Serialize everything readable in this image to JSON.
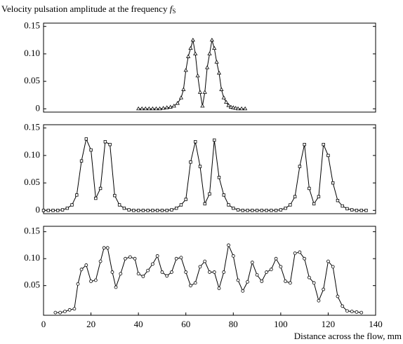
{
  "chart_data": [
    {
      "type": "line",
      "title": "Velocity pulsation amplitude at the frequency",
      "title_symbol": "f",
      "title_subscript": "S",
      "marker": "triangle",
      "color": "#000000",
      "x": [
        40,
        41.5,
        43,
        44.5,
        46,
        47.5,
        49,
        50.5,
        52,
        53.5,
        55,
        56.5,
        58,
        59,
        60,
        61,
        62,
        63,
        64,
        65,
        66,
        67,
        68,
        69,
        70,
        71,
        72,
        73,
        74,
        75,
        76,
        77,
        78,
        79,
        80,
        81,
        82,
        83.5,
        85
      ],
      "values": [
        0,
        0,
        0,
        0,
        0,
        0,
        0,
        0.001,
        0.002,
        0.003,
        0.005,
        0.01,
        0.02,
        0.035,
        0.07,
        0.095,
        0.11,
        0.125,
        0.1,
        0.06,
        0.03,
        0.005,
        0.03,
        0.075,
        0.1,
        0.125,
        0.11,
        0.085,
        0.065,
        0.035,
        0.02,
        0.012,
        0.006,
        0.003,
        0.002,
        0.001,
        0,
        0,
        0
      ],
      "xlim": [
        0,
        140
      ],
      "ylim": [
        -0.006,
        0.156
      ],
      "yticks": [
        0,
        0.05,
        {
          "value": 0.1,
          "label": "0.10"
        },
        0.15
      ]
    },
    {
      "type": "line",
      "marker": "square",
      "color": "#000000",
      "x": [
        0,
        2,
        4,
        6,
        8,
        10,
        12,
        14,
        16,
        18,
        20,
        22,
        24,
        26,
        28,
        30,
        32,
        34,
        36,
        38,
        40,
        42,
        44,
        46,
        48,
        50,
        52,
        54,
        56,
        58,
        60,
        62,
        64,
        66,
        68,
        70,
        72,
        74,
        76,
        78,
        80,
        82,
        84,
        86,
        88,
        90,
        92,
        94,
        96,
        98,
        100,
        102,
        104,
        106,
        108,
        110,
        112,
        114,
        116,
        118,
        120,
        122,
        124,
        126,
        128,
        130,
        132,
        134,
        136
      ],
      "values": [
        0,
        0,
        0,
        0,
        0.001,
        0.004,
        0.01,
        0.028,
        0.09,
        0.13,
        0.11,
        0.022,
        0.04,
        0.125,
        0.12,
        0.027,
        0.01,
        0.004,
        0.001,
        0,
        0,
        0,
        0,
        0,
        0,
        0,
        0,
        0.001,
        0.004,
        0.01,
        0.02,
        0.088,
        0.125,
        0.08,
        0.012,
        0.03,
        0.128,
        0.06,
        0.028,
        0.01,
        0.004,
        0.001,
        0,
        0,
        0,
        0,
        0,
        0,
        0,
        0,
        0.001,
        0.004,
        0.01,
        0.025,
        0.08,
        0.12,
        0.04,
        0.012,
        0.025,
        0.12,
        0.1,
        0.05,
        0.018,
        0.008,
        0.003,
        0.001,
        0,
        0,
        0
      ],
      "xlim": [
        0,
        140
      ],
      "ylim": [
        -0.006,
        0.156
      ],
      "yticks": [
        0,
        0.05,
        {
          "value": 0.1,
          "label": "0.10"
        },
        0.15
      ]
    },
    {
      "type": "line",
      "marker": "circle",
      "color": "#000000",
      "xlabel": "Distance across the flow, mm",
      "x": [
        5,
        7,
        9,
        11,
        13,
        14.5,
        16,
        18,
        20,
        22,
        24,
        25.5,
        27,
        29,
        30.5,
        32.5,
        34.5,
        36.5,
        38.5,
        40,
        42,
        44,
        46,
        48,
        50,
        52,
        54,
        56,
        58,
        60,
        62,
        64,
        66,
        68,
        70,
        72,
        74,
        76,
        78,
        80,
        82,
        84,
        86,
        88,
        90,
        92,
        94,
        96,
        98,
        100,
        102,
        104,
        106,
        108,
        110,
        112,
        114,
        116,
        118,
        120,
        122,
        124,
        126,
        128,
        130,
        132,
        134
      ],
      "values": [
        0,
        0,
        0.002,
        0.005,
        0.007,
        0.053,
        0.08,
        0.088,
        0.058,
        0.06,
        0.095,
        0.12,
        0.12,
        0.075,
        0.047,
        0.072,
        0.1,
        0.103,
        0.1,
        0.072,
        0.067,
        0.078,
        0.09,
        0.105,
        0.075,
        0.068,
        0.075,
        0.1,
        0.102,
        0.075,
        0.05,
        0.055,
        0.085,
        0.095,
        0.075,
        0.075,
        0.045,
        0.075,
        0.125,
        0.105,
        0.06,
        0.04,
        0.057,
        0.093,
        0.07,
        0.058,
        0.075,
        0.08,
        0.1,
        0.085,
        0.058,
        0.055,
        0.11,
        0.112,
        0.1,
        0.065,
        0.055,
        0.022,
        0.043,
        0.095,
        0.085,
        0.03,
        0.012,
        0.003,
        0.002,
        0.001,
        0
      ],
      "xlim": [
        0,
        140
      ],
      "ylim": [
        -0.005,
        0.16
      ],
      "yticks": [
        0.05,
        {
          "value": 0.1,
          "label": "0.10"
        },
        0.15
      ],
      "xticks": [
        0,
        20,
        40,
        60,
        80,
        100,
        120,
        140
      ]
    }
  ]
}
